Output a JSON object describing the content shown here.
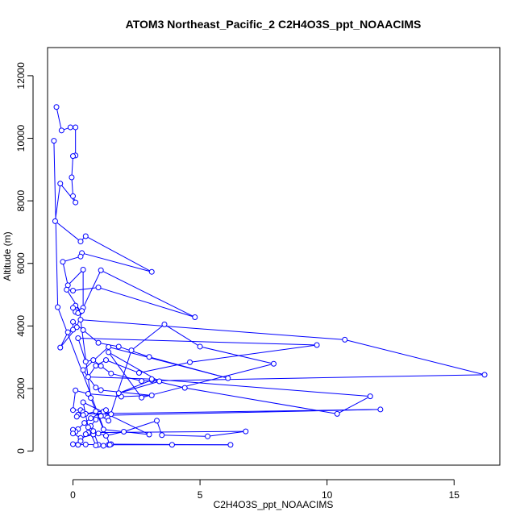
{
  "chart_data": {
    "type": "scatter",
    "title": "ATOM3 Northeast_Pacific_2 C2H4O3S_ppt_NOAACIMS",
    "xlabel": "C2H4O3S_ppt_NOAACIMS",
    "ylabel": "Altitude (m)",
    "xlim": [
      -1.0,
      16.8
    ],
    "ylim": [
      -450,
      12900
    ],
    "xticks": [
      0,
      5,
      10,
      15
    ],
    "yticks": [
      0,
      2000,
      4000,
      6000,
      8000,
      10000,
      12000
    ],
    "line_color": "#0000ff",
    "marker": "open-circle",
    "series": [
      {
        "x": [
          -0.65,
          -0.45,
          -0.1,
          0.1,
          0.1,
          0.0,
          -0.05,
          0.0,
          0.1,
          -0.5,
          -0.7,
          0.3,
          0.5,
          3.1,
          0.35,
          0.3,
          -0.4,
          -0.2,
          0.4,
          0.4,
          1.1,
          4.8,
          1.0,
          0.0,
          -0.25,
          0.3,
          0.1,
          0.0,
          0.1,
          0.2,
          0.35,
          0.15,
          -0.5,
          -0.2,
          0.0,
          0.0,
          0.4,
          1.0,
          1.8,
          3.0,
          6.1,
          1.4,
          0.4,
          0.9,
          1.1,
          3.1,
          1.9,
          0.6,
          0.1,
          0.0,
          0.3,
          0.4,
          1.2,
          12.1,
          0.5,
          0.4,
          0.2,
          0.15,
          0.9,
          1.2,
          1.5,
          1.3,
          0.7,
          0.45,
          0.2,
          0.1,
          0.0,
          0.0,
          0.3,
          0.8,
          1.0,
          1.3,
          2.0,
          3.3,
          3.5,
          5.3,
          6.8,
          0.6,
          0.8,
          1.0,
          3.9,
          6.2,
          1.5,
          1.4,
          0.5,
          0.2,
          0.0,
          0.3,
          0.5,
          0.7,
          0.9,
          1.1,
          1.4,
          2.3,
          3.6,
          5.0,
          7.9,
          2.7,
          1.4,
          3.4,
          1.8,
          3.1,
          4.4,
          10.4,
          11.7,
          3.1,
          0.6,
          0.9,
          1.3,
          2.6,
          4.6,
          9.6,
          0.2,
          0.5,
          0.8,
          1.1,
          1.5,
          2.7,
          16.2,
          10.7,
          0.3,
          0.7,
          1.2,
          3.0,
          0.4,
          0.6,
          0.9,
          1.2,
          1.45,
          -0.6,
          -0.75
        ],
        "y": [
          11000,
          10250,
          10350,
          10350,
          9450,
          9430,
          8750,
          8150,
          7950,
          8550,
          7350,
          6700,
          6870,
          5730,
          6330,
          6220,
          6050,
          5300,
          5800,
          4580,
          5780,
          4280,
          5230,
          5130,
          5160,
          4460,
          4650,
          4580,
          4450,
          4410,
          4480,
          3960,
          3310,
          3800,
          3880,
          4130,
          3870,
          3460,
          3340,
          3010,
          2330,
          3330,
          2590,
          2030,
          1950,
          1780,
          1740,
          1830,
          1940,
          1310,
          1310,
          1240,
          1140,
          1330,
          1190,
          1150,
          1160,
          1100,
          1270,
          1260,
          1180,
          1310,
          1050,
          900,
          700,
          620,
          680,
          560,
          420,
          530,
          560,
          490,
          620,
          970,
          510,
          470,
          630,
          590,
          640,
          200,
          200,
          200,
          220,
          200,
          210,
          200,
          220,
          320,
          540,
          800,
          1010,
          1120,
          970,
          3220,
          4050,
          3340,
          2790,
          1710,
          3160,
          2230,
          1850,
          2270,
          2020,
          1190,
          1750,
          2300,
          2370,
          2730,
          2910,
          2500,
          2840,
          3390,
          3610,
          2860,
          2910,
          2720,
          2480,
          2240,
          2440,
          3560,
          4200,
          1700,
          690,
          530,
          1560,
          760,
          180,
          170,
          200,
          4600,
          9920
        ]
      }
    ]
  }
}
